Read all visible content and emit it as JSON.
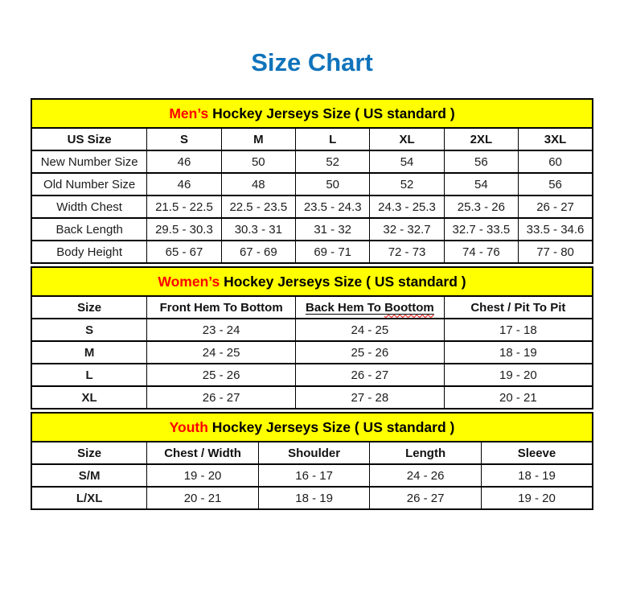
{
  "page": {
    "title": "Size Chart"
  },
  "colors": {
    "title_blue": "#0f73bb",
    "band_yellow": "#ffff00",
    "accent_red": "#ff0000",
    "border_black": "#000000",
    "text_black": "#1c1c1c"
  },
  "tables": [
    {
      "id": "mens",
      "caption_highlight": "Men’s",
      "caption_rest": " Hockey Jerseys Size ( US standard )",
      "columns": [
        "US Size",
        "S",
        "M",
        "L",
        "XL",
        "2XL",
        "3XL"
      ],
      "row_label_bold": false,
      "rows": [
        [
          "New Number Size",
          "46",
          "50",
          "52",
          "54",
          "56",
          "60"
        ],
        [
          "Old Number Size",
          "46",
          "48",
          "50",
          "52",
          "54",
          "56"
        ],
        [
          "Width Chest",
          "21.5 - 22.5",
          "22.5 - 23.5",
          "23.5 - 24.3",
          "24.3 - 25.3",
          "25.3 - 26",
          "26 - 27"
        ],
        [
          "Back Length",
          "29.5 - 30.3",
          "30.3 - 31",
          "31 - 32",
          "32 - 32.7",
          "32.7 - 33.5",
          "33.5 - 34.6"
        ],
        [
          "Body Height",
          "65 - 67",
          "67 - 69",
          "69 - 71",
          "72 - 73",
          "74 - 76",
          "77 - 80"
        ]
      ]
    },
    {
      "id": "womens",
      "caption_highlight": "Women’s",
      "caption_rest": " Hockey Jerseys Size ( US standard )",
      "columns": [
        "Size",
        "Front Hem To Bottom",
        "Back Hem To Boottom",
        "Chest / Pit To Pit"
      ],
      "row_label_bold": true,
      "spellcheck": {
        "column_index": 2,
        "underline": true,
        "wavy_word": "Boottom"
      },
      "rows": [
        [
          "S",
          "23 - 24",
          "24 - 25",
          "17 - 18"
        ],
        [
          "M",
          "24 - 25",
          "25 - 26",
          "18 - 19"
        ],
        [
          "L",
          "25 - 26",
          "26 - 27",
          "19 - 20"
        ],
        [
          "XL",
          "26 - 27",
          "27 - 28",
          "20 - 21"
        ]
      ]
    },
    {
      "id": "youth",
      "caption_highlight": "Youth",
      "caption_rest": " Hockey Jerseys Size ( US standard )",
      "columns": [
        "Size",
        "Chest / Width",
        "Shoulder",
        "Length",
        "Sleeve"
      ],
      "row_label_bold": true,
      "rows": [
        [
          "S/M",
          "19 - 20",
          "16 - 17",
          "24 - 26",
          "18 - 19"
        ],
        [
          "L/XL",
          "20 - 21",
          "18 - 19",
          "26 - 27",
          "19 - 20"
        ]
      ]
    }
  ]
}
